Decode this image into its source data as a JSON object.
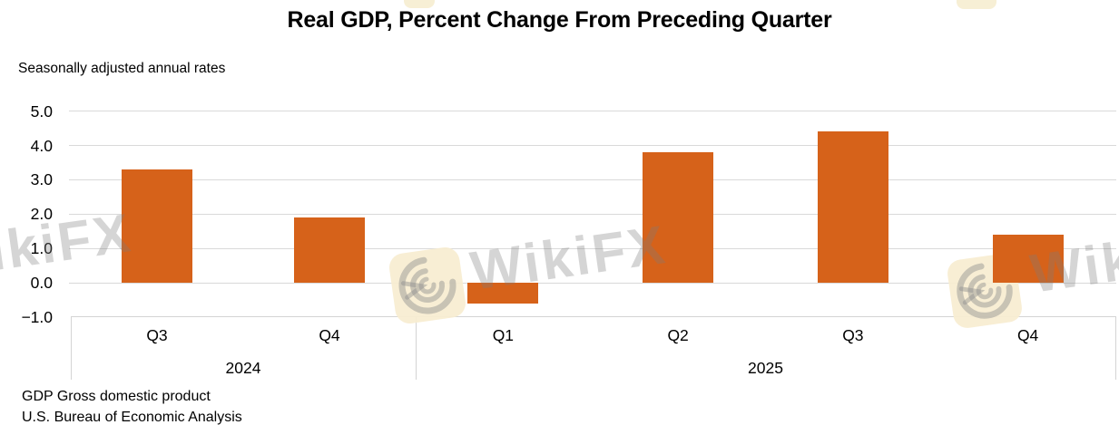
{
  "title": "Real GDP, Percent Change From Preceding Quarter",
  "subtitle": "Seasonally adjusted annual rates",
  "footer": {
    "line1": "GDP Gross domestic product",
    "line2": "U.S. Bureau of Economic Analysis"
  },
  "watermark": {
    "text": "WikiFX",
    "logo_name": "wikifx-eagle-logo"
  },
  "colors": {
    "bar": "#d6621a",
    "gridline": "#d9d9d9",
    "axis_line": "#d4d4d4",
    "watermark_logo_bg": "#f7edd0",
    "watermark_gray": "#7d7d7d"
  },
  "chart_data": {
    "type": "bar",
    "categories": [
      "Q3",
      "Q4",
      "Q1",
      "Q2",
      "Q3",
      "Q4"
    ],
    "values": [
      3.3,
      1.9,
      -0.6,
      3.8,
      4.4,
      1.4
    ],
    "year_groups": [
      {
        "label": "2024",
        "count": 2
      },
      {
        "label": "2025",
        "count": 4
      }
    ],
    "title": "Real GDP, Percent Change From Preceding Quarter",
    "subtitle": "Seasonally adjusted annual rates",
    "xlabel": "",
    "ylabel": "",
    "ylim": [
      -1.0,
      5.0
    ],
    "ytick_values": [
      5,
      4,
      3,
      2,
      1,
      0,
      -1
    ],
    "ytick_labels": [
      "5.0",
      "4.0",
      "3.0",
      "2.0",
      "1.0",
      "0.0",
      "−1.0"
    ],
    "grid": true,
    "legend": "none",
    "bar_color": "#d6621a"
  }
}
